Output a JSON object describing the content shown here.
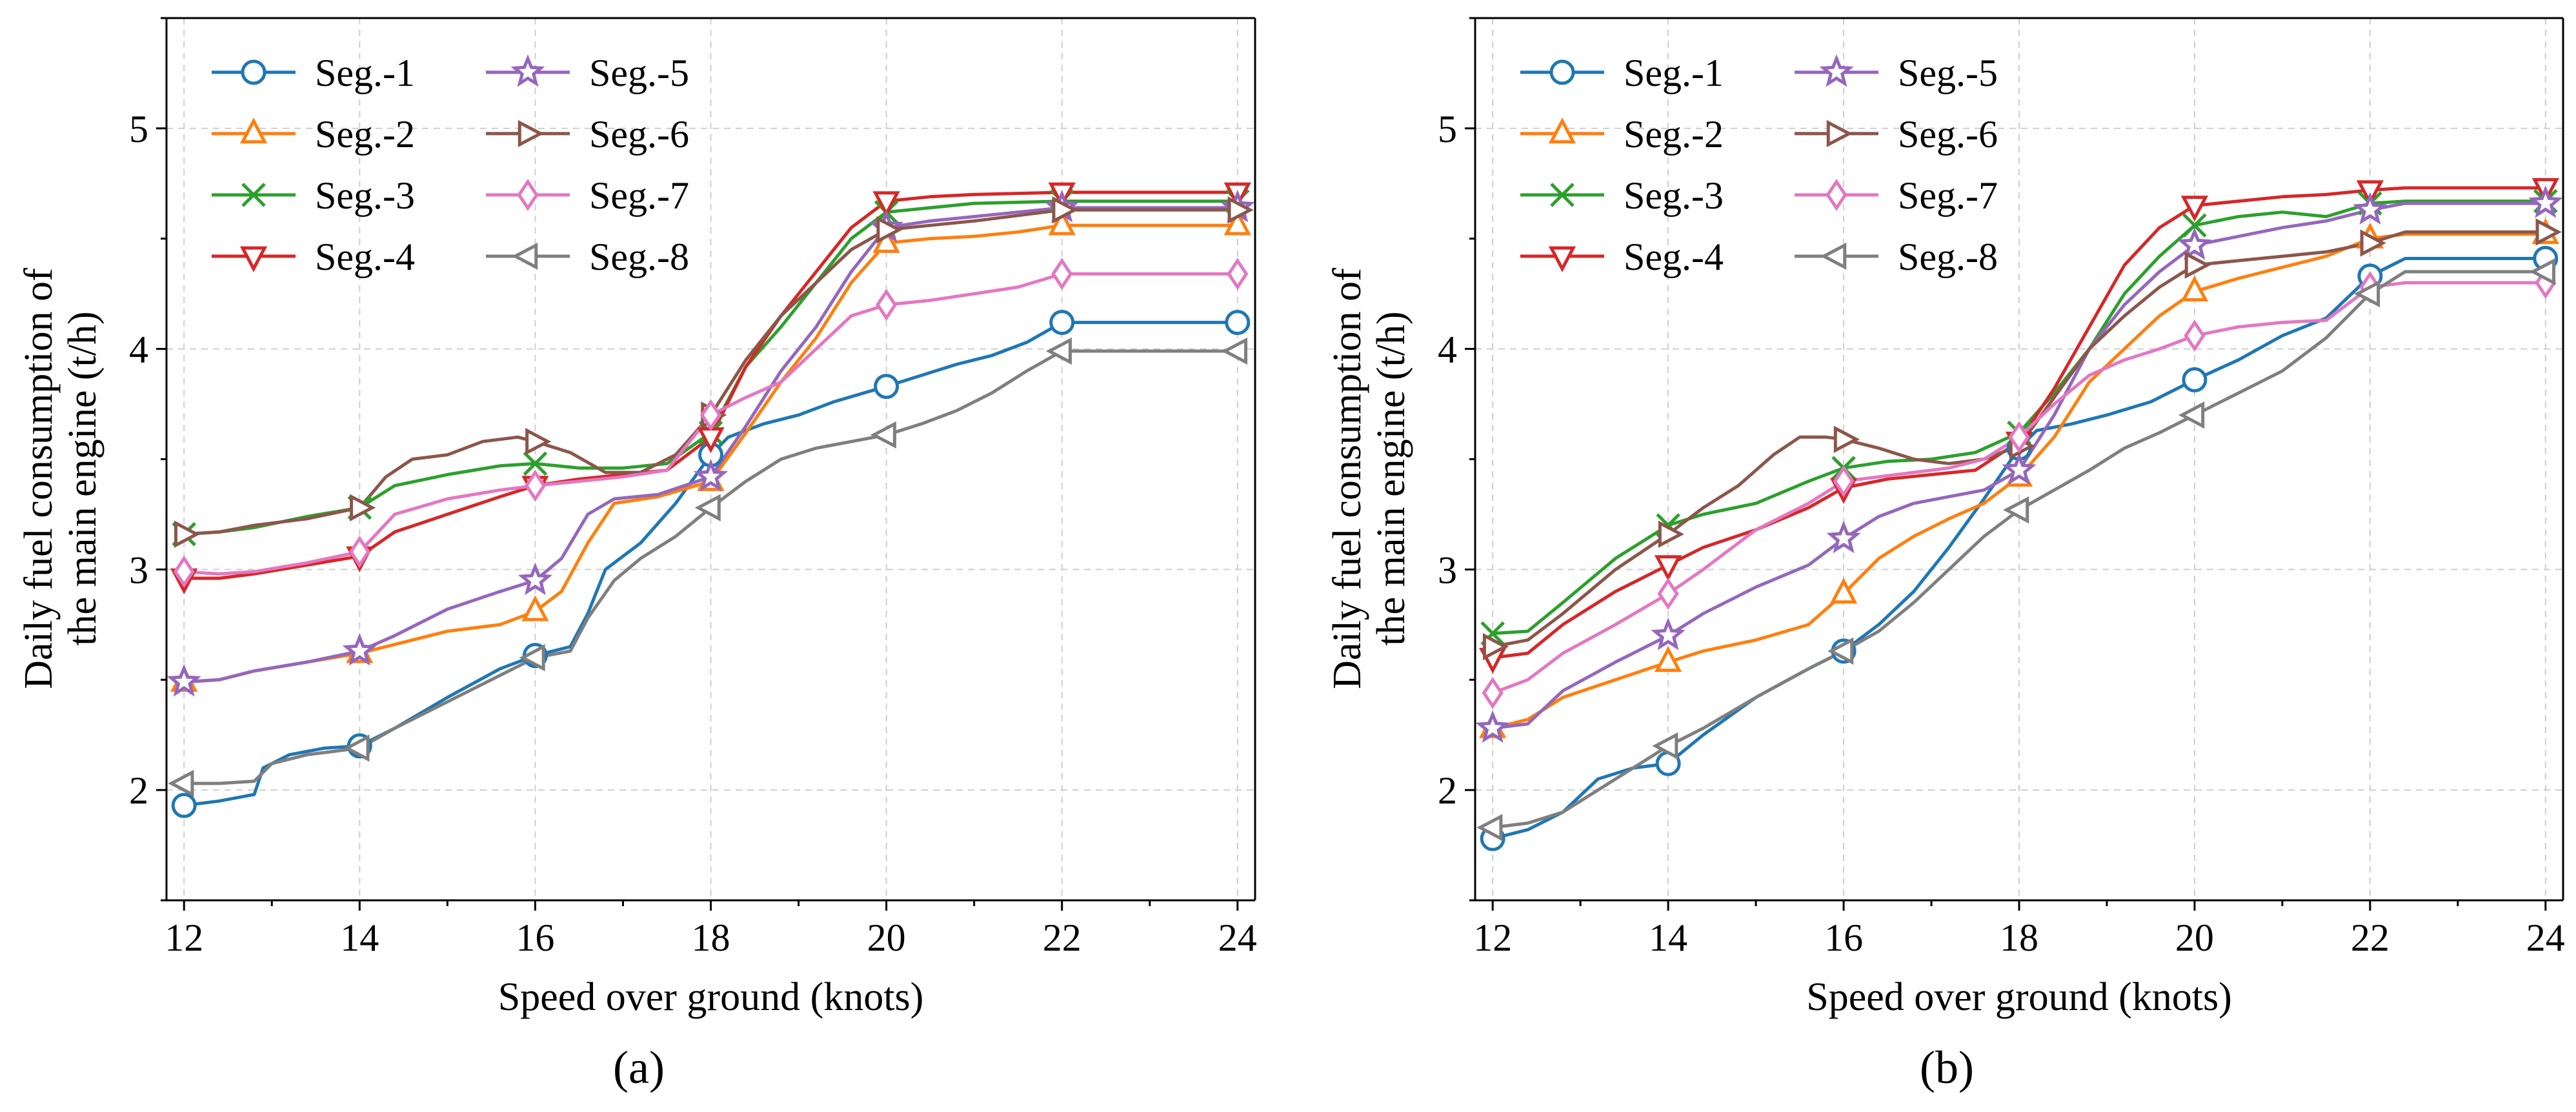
{
  "chart_data": [
    {
      "type": "line",
      "panel_label": "(a)",
      "xlabel": "Speed over ground (knots)",
      "ylabel_lines": [
        "Daily fuel consumption of",
        "the main engine (t/h)"
      ],
      "xlim": [
        11.8,
        24.2
      ],
      "ylim": [
        1.5,
        5.5
      ],
      "xticks": [
        12,
        14,
        16,
        18,
        20,
        22,
        24
      ],
      "yticks": [
        2,
        3,
        4,
        5
      ],
      "grid": true,
      "legend_position": "top-left",
      "series": [
        {
          "name": "Seg.-1",
          "color": "#1f77b4",
          "marker": "circle",
          "x": [
            12,
            12.4,
            12.8,
            12.9,
            13.2,
            13.6,
            14,
            14.4,
            15,
            15.6,
            16,
            16.4,
            16.6,
            16.8,
            17.2,
            17.6,
            18,
            18.2,
            18.6,
            19,
            19.4,
            20,
            20.4,
            20.8,
            21.2,
            21.6,
            22,
            22.4,
            24
          ],
          "y": [
            1.93,
            1.95,
            1.98,
            2.1,
            2.16,
            2.19,
            2.2,
            2.28,
            2.42,
            2.55,
            2.61,
            2.65,
            2.8,
            3.0,
            3.12,
            3.3,
            3.52,
            3.6,
            3.66,
            3.7,
            3.76,
            3.83,
            3.88,
            3.93,
            3.97,
            4.03,
            4.12,
            4.12,
            4.12
          ]
        },
        {
          "name": "Seg.-2",
          "color": "#ff7f0e",
          "marker": "triangle-up",
          "x": [
            12,
            12.4,
            12.8,
            13.4,
            14,
            14.4,
            15,
            15.6,
            16,
            16.3,
            16.6,
            16.9,
            17.4,
            18,
            18.4,
            18.8,
            19.2,
            19.6,
            20,
            20.5,
            21,
            21.5,
            22,
            22.4,
            24
          ],
          "y": [
            2.49,
            2.5,
            2.54,
            2.58,
            2.62,
            2.66,
            2.72,
            2.75,
            2.81,
            2.9,
            3.12,
            3.3,
            3.33,
            3.4,
            3.62,
            3.85,
            4.05,
            4.3,
            4.48,
            4.5,
            4.51,
            4.53,
            4.56,
            4.56,
            4.56
          ]
        },
        {
          "name": "Seg.-3",
          "color": "#2ca02c",
          "marker": "x",
          "x": [
            12,
            12.4,
            12.8,
            13.4,
            14,
            14.4,
            15,
            15.6,
            16,
            16.5,
            17,
            17.5,
            18,
            18.4,
            18.8,
            19.2,
            19.6,
            20,
            20.5,
            21,
            22,
            22.4,
            24
          ],
          "y": [
            3.16,
            3.17,
            3.19,
            3.24,
            3.28,
            3.38,
            3.43,
            3.47,
            3.48,
            3.46,
            3.46,
            3.48,
            3.62,
            3.92,
            4.1,
            4.3,
            4.5,
            4.62,
            4.64,
            4.66,
            4.67,
            4.67,
            4.67
          ]
        },
        {
          "name": "Seg.-4",
          "color": "#d62728",
          "marker": "triangle-down",
          "x": [
            12,
            12.4,
            12.8,
            13.4,
            14,
            14.4,
            15,
            15.6,
            16,
            16.5,
            17,
            17.5,
            18,
            18.4,
            18.8,
            19.2,
            19.6,
            20,
            20.5,
            21,
            22,
            22.4,
            24
          ],
          "y": [
            2.96,
            2.96,
            2.98,
            3.02,
            3.06,
            3.17,
            3.25,
            3.33,
            3.38,
            3.41,
            3.43,
            3.45,
            3.6,
            3.92,
            4.15,
            4.35,
            4.55,
            4.67,
            4.69,
            4.7,
            4.71,
            4.71,
            4.71
          ]
        },
        {
          "name": "Seg.-5",
          "color": "#9467bd",
          "marker": "star",
          "x": [
            12,
            12.4,
            12.8,
            13.4,
            14,
            14.4,
            15,
            15.6,
            16,
            16.3,
            16.6,
            16.9,
            17.4,
            18,
            18.4,
            18.8,
            19.2,
            19.6,
            20,
            20.5,
            21,
            21.5,
            22,
            22.4,
            24
          ],
          "y": [
            2.49,
            2.5,
            2.54,
            2.58,
            2.63,
            2.7,
            2.82,
            2.9,
            2.95,
            3.05,
            3.25,
            3.32,
            3.34,
            3.42,
            3.65,
            3.9,
            4.1,
            4.35,
            4.55,
            4.58,
            4.6,
            4.62,
            4.64,
            4.64,
            4.64
          ]
        },
        {
          "name": "Seg.-6",
          "color": "#8c564b",
          "marker": "triangle-right",
          "x": [
            12,
            12.4,
            12.8,
            13.4,
            14,
            14.3,
            14.6,
            15,
            15.4,
            15.8,
            16,
            16.4,
            16.8,
            17.2,
            17.6,
            18,
            18.4,
            18.8,
            19.2,
            19.6,
            20,
            20.5,
            21,
            22,
            22.4,
            24
          ],
          "y": [
            3.16,
            3.17,
            3.2,
            3.23,
            3.28,
            3.42,
            3.5,
            3.52,
            3.58,
            3.6,
            3.58,
            3.53,
            3.44,
            3.44,
            3.52,
            3.7,
            3.95,
            4.15,
            4.3,
            4.45,
            4.54,
            4.56,
            4.58,
            4.63,
            4.63,
            4.63
          ]
        },
        {
          "name": "Seg.-7",
          "color": "#e377c2",
          "marker": "diamond",
          "x": [
            12,
            12.4,
            12.8,
            13.4,
            14,
            14.4,
            15,
            15.6,
            16,
            16.5,
            17,
            17.5,
            18,
            18.4,
            18.8,
            19.2,
            19.6,
            20,
            20.5,
            21,
            21.5,
            22,
            22.4,
            24
          ],
          "y": [
            2.99,
            2.98,
            2.99,
            3.03,
            3.08,
            3.25,
            3.32,
            3.36,
            3.38,
            3.4,
            3.42,
            3.45,
            3.7,
            3.78,
            3.85,
            4.0,
            4.15,
            4.2,
            4.22,
            4.25,
            4.28,
            4.34,
            4.34,
            4.34
          ]
        },
        {
          "name": "Seg.-8",
          "color": "#7f7f7f",
          "marker": "triangle-left",
          "x": [
            12,
            12.4,
            12.8,
            13,
            13.4,
            14,
            14.4,
            15,
            15.6,
            16,
            16.4,
            16.6,
            16.9,
            17.2,
            17.6,
            18,
            18.4,
            18.8,
            19.2,
            19.6,
            20,
            20.4,
            20.8,
            21.2,
            21.6,
            22,
            22.4,
            24
          ],
          "y": [
            2.03,
            2.03,
            2.04,
            2.12,
            2.16,
            2.19,
            2.28,
            2.4,
            2.52,
            2.6,
            2.63,
            2.78,
            2.95,
            3.05,
            3.15,
            3.28,
            3.4,
            3.5,
            3.55,
            3.58,
            3.61,
            3.66,
            3.72,
            3.8,
            3.9,
            3.99,
            3.99,
            3.99
          ]
        }
      ]
    },
    {
      "type": "line",
      "panel_label": "(b)",
      "xlabel": "Speed over ground (knots)",
      "ylabel_lines": [
        "Daily fuel consumption of",
        "the main engine (t/h)"
      ],
      "xlim": [
        11.8,
        24.2
      ],
      "ylim": [
        1.5,
        5.5
      ],
      "xticks": [
        12,
        14,
        16,
        18,
        20,
        22,
        24
      ],
      "yticks": [
        2,
        3,
        4,
        5
      ],
      "grid": true,
      "legend_position": "top-left",
      "series": [
        {
          "name": "Seg.-1",
          "color": "#1f77b4",
          "marker": "circle",
          "x": [
            12,
            12.4,
            12.8,
            13.2,
            13.6,
            14,
            14.4,
            15,
            15.6,
            16,
            16.4,
            16.8,
            17.2,
            17.6,
            18,
            18.2,
            18.6,
            19,
            19.5,
            20,
            20.5,
            21,
            21.5,
            22,
            22.4,
            24
          ],
          "y": [
            1.78,
            1.82,
            1.9,
            2.05,
            2.1,
            2.12,
            2.25,
            2.42,
            2.55,
            2.63,
            2.75,
            2.9,
            3.1,
            3.32,
            3.55,
            3.63,
            3.66,
            3.7,
            3.76,
            3.86,
            3.95,
            4.06,
            4.14,
            4.33,
            4.41,
            4.41
          ]
        },
        {
          "name": "Seg.-2",
          "color": "#ff7f0e",
          "marker": "triangle-up",
          "x": [
            12,
            12.4,
            12.8,
            13.4,
            14,
            14.4,
            15,
            15.6,
            16,
            16.4,
            16.8,
            17.2,
            17.6,
            18,
            18.4,
            18.8,
            19.2,
            19.6,
            20,
            20.5,
            21,
            21.5,
            22,
            22.4,
            24
          ],
          "y": [
            2.28,
            2.32,
            2.42,
            2.5,
            2.58,
            2.63,
            2.68,
            2.75,
            2.89,
            3.05,
            3.15,
            3.23,
            3.3,
            3.42,
            3.6,
            3.85,
            4.0,
            4.15,
            4.26,
            4.32,
            4.37,
            4.42,
            4.5,
            4.52,
            4.52
          ]
        },
        {
          "name": "Seg.-3",
          "color": "#2ca02c",
          "marker": "x",
          "x": [
            12,
            12.4,
            12.8,
            13.4,
            14,
            14.4,
            15,
            15.6,
            16,
            16.5,
            17,
            17.5,
            18,
            18.4,
            18.8,
            19.2,
            19.6,
            20,
            20.5,
            21,
            21.5,
            22,
            22.4,
            24
          ],
          "y": [
            2.71,
            2.72,
            2.85,
            3.05,
            3.2,
            3.25,
            3.3,
            3.4,
            3.46,
            3.49,
            3.5,
            3.53,
            3.62,
            3.8,
            4.0,
            4.25,
            4.42,
            4.56,
            4.6,
            4.62,
            4.6,
            4.66,
            4.67,
            4.67
          ]
        },
        {
          "name": "Seg.-4",
          "color": "#d62728",
          "marker": "triangle-down",
          "x": [
            12,
            12.4,
            12.8,
            13.4,
            14,
            14.4,
            15,
            15.6,
            16,
            16.5,
            17,
            17.5,
            18,
            18.4,
            18.8,
            19.2,
            19.6,
            20,
            20.5,
            21,
            21.5,
            22,
            22.4,
            24
          ],
          "y": [
            2.6,
            2.62,
            2.75,
            2.9,
            3.02,
            3.1,
            3.18,
            3.28,
            3.37,
            3.41,
            3.43,
            3.45,
            3.58,
            3.82,
            4.1,
            4.38,
            4.55,
            4.65,
            4.67,
            4.69,
            4.7,
            4.72,
            4.73,
            4.73
          ]
        },
        {
          "name": "Seg.-5",
          "color": "#9467bd",
          "marker": "star",
          "x": [
            12,
            12.4,
            12.8,
            13.4,
            14,
            14.4,
            15,
            15.6,
            16,
            16.4,
            16.8,
            17.2,
            17.6,
            18,
            18.4,
            18.8,
            19.2,
            19.6,
            20,
            20.5,
            21,
            21.5,
            22,
            22.4,
            24
          ],
          "y": [
            2.28,
            2.3,
            2.45,
            2.58,
            2.7,
            2.8,
            2.92,
            3.02,
            3.14,
            3.24,
            3.3,
            3.33,
            3.36,
            3.45,
            3.7,
            4.0,
            4.2,
            4.35,
            4.47,
            4.51,
            4.55,
            4.58,
            4.63,
            4.66,
            4.66
          ]
        },
        {
          "name": "Seg.-6",
          "color": "#8c564b",
          "marker": "triangle-right",
          "x": [
            12,
            12.4,
            12.8,
            13.4,
            14,
            14.4,
            14.8,
            15.2,
            15.5,
            15.8,
            16,
            16.4,
            16.8,
            17.2,
            17.6,
            18,
            18.4,
            18.8,
            19.2,
            19.6,
            20,
            20.5,
            21,
            21.5,
            22,
            22.4,
            24
          ],
          "y": [
            2.65,
            2.68,
            2.8,
            3.0,
            3.16,
            3.28,
            3.38,
            3.52,
            3.6,
            3.6,
            3.59,
            3.55,
            3.5,
            3.48,
            3.5,
            3.56,
            3.78,
            4.0,
            4.15,
            4.28,
            4.38,
            4.4,
            4.42,
            4.44,
            4.48,
            4.53,
            4.53
          ]
        },
        {
          "name": "Seg.-7",
          "color": "#e377c2",
          "marker": "diamond",
          "x": [
            12,
            12.4,
            12.8,
            13.4,
            14,
            14.4,
            15,
            15.6,
            16,
            16.4,
            16.8,
            17.2,
            17.6,
            18,
            18.4,
            18.8,
            19.2,
            19.6,
            20,
            20.5,
            21,
            21.5,
            22,
            22.4,
            24
          ],
          "y": [
            2.44,
            2.5,
            2.62,
            2.75,
            2.89,
            3.0,
            3.18,
            3.3,
            3.4,
            3.42,
            3.44,
            3.46,
            3.5,
            3.6,
            3.75,
            3.88,
            3.95,
            4.0,
            4.06,
            4.1,
            4.12,
            4.13,
            4.28,
            4.3,
            4.3
          ]
        },
        {
          "name": "Seg.-8",
          "color": "#7f7f7f",
          "marker": "triangle-left",
          "x": [
            12,
            12.4,
            12.8,
            13.2,
            13.6,
            14,
            14.4,
            15,
            15.6,
            16,
            16.4,
            16.8,
            17.2,
            17.6,
            18,
            18.4,
            18.8,
            19.2,
            19.6,
            20,
            20.5,
            21,
            21.5,
            22,
            22.4,
            24
          ],
          "y": [
            1.83,
            1.85,
            1.9,
            2.0,
            2.1,
            2.2,
            2.28,
            2.42,
            2.55,
            2.63,
            2.72,
            2.85,
            3.0,
            3.15,
            3.27,
            3.36,
            3.45,
            3.55,
            3.62,
            3.7,
            3.8,
            3.9,
            4.05,
            4.25,
            4.35,
            4.35
          ]
        }
      ]
    }
  ]
}
